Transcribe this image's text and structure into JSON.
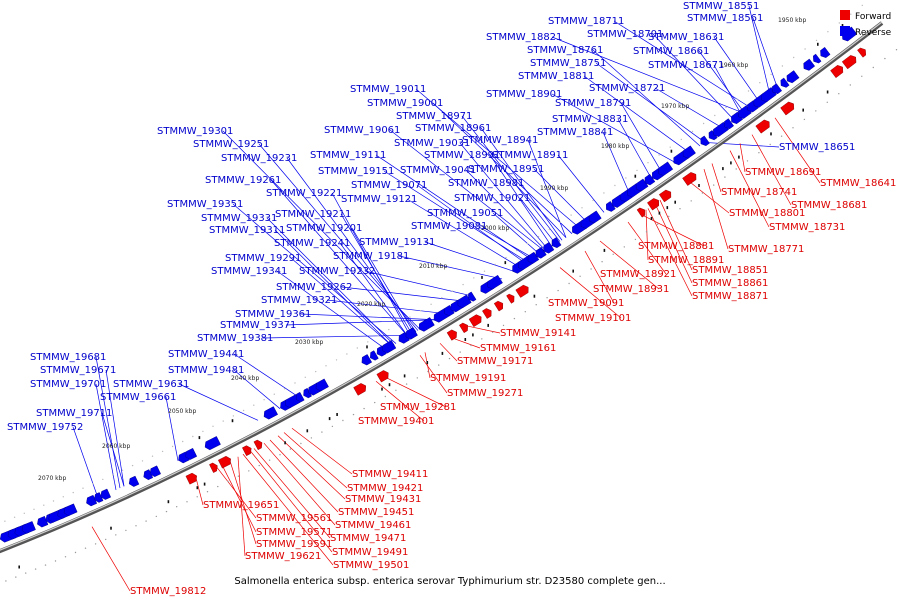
{
  "caption": "Salmonella enterica subsp. enterica serovar Typhimurium str. D23580 complete gen...",
  "legend": [
    {
      "label": "Forward",
      "color": "#ee0000"
    },
    {
      "label": "Reverse",
      "color": "#0000ee"
    }
  ],
  "colors": {
    "forward": "#ee0000",
    "reverse": "#0000ee",
    "backbone": "#888888"
  },
  "ticks": [
    "1950 kbp",
    "1960 kbp",
    "1970 kbp",
    "1980 kbp",
    "1990 kbp",
    "2000 kbp",
    "2010 kbp",
    "2020 kbp",
    "2030 kbp",
    "2040 kbp",
    "2050 kbp",
    "2060 kbp",
    "2070 kbp"
  ],
  "reverse_labels": [
    "STMMW_18551",
    "STMMW_18561",
    "STMMW_18711",
    "STMMW_18821",
    "STMMW_18701",
    "STMMW_18631",
    "STMMW_18761",
    "STMMW_18661",
    "STMMW_18751",
    "STMMW_18671",
    "STMMW_18811",
    "STMMW_18721",
    "STMMW_19011",
    "STMMW_18901",
    "STMMW_19001",
    "STMMW_18791",
    "STMMW_18971",
    "STMMW_18831",
    "STMMW_19061",
    "STMMW_18961",
    "STMMW_18841",
    "STMMW_19301",
    "STMMW_19031",
    "STMMW_18941",
    "STMMW_19251",
    "STMMW_19111",
    "STMMW_18991",
    "STMMW_18911",
    "STMMW_19231",
    "STMMW_19041",
    "STMMW_19151",
    "STMMW_18951",
    "STMMW_19261",
    "STMMW_19071",
    "STMMW_18981",
    "STMMW_19221",
    "STMMW_19121",
    "STMMW_19021",
    "STMMW_19351",
    "STMMW_19211",
    "STMMW_19051",
    "STMMW_19331",
    "STMMW_19201",
    "STMMW_19081",
    "STMMW_19311",
    "STMMW_19241",
    "STMMW_19131",
    "STMMW_19291",
    "STMMW_19181",
    "STMMW_19341",
    "STMMW_19232",
    "STMMW_19262",
    "STMMW_19321",
    "STMMW_19361",
    "STMMW_19371",
    "STMMW_19381",
    "STMMW_19681",
    "STMMW_19441",
    "STMMW_19671",
    "STMMW_19481",
    "STMMW_19701",
    "STMMW_19631",
    "STMMW_19661",
    "STMMW_19711",
    "STMMW_19752",
    "STMMW_18651"
  ],
  "forward_labels": [
    "STMMW_18641",
    "STMMW_18691",
    "STMMW_18681",
    "STMMW_18741",
    "STMMW_18731",
    "STMMW_18801",
    "STMMW_18771",
    "STMMW_18881",
    "STMMW_18891",
    "STMMW_18851",
    "STMMW_18921",
    "STMMW_18861",
    "STMMW_18871",
    "STMMW_18931",
    "STMMW_19091",
    "STMMW_19101",
    "STMMW_19141",
    "STMMW_19161",
    "STMMW_19171",
    "STMMW_19191",
    "STMMW_19271",
    "STMMW_19281",
    "STMMW_19401",
    "STMMW_19411",
    "STMMW_19421",
    "STMMW_19431",
    "STMMW_19451",
    "STMMW_19461",
    "STMMW_19471",
    "STMMW_19651",
    "STMMW_19561",
    "STMMW_19571",
    "STMMW_19591",
    "STMMW_19491",
    "STMMW_19621",
    "STMMW_19501",
    "STMMW_19812"
  ]
}
